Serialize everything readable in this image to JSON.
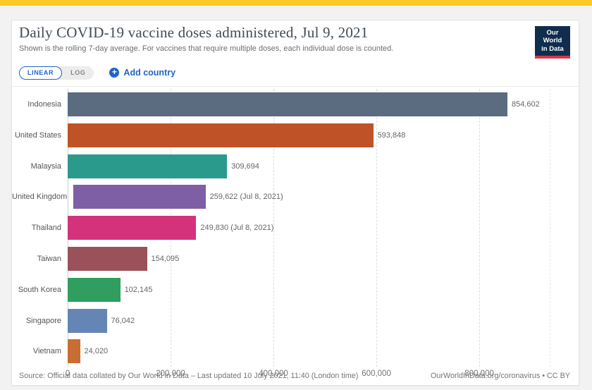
{
  "colors": {
    "accent": "#2265c7",
    "topbar": "#fdca26",
    "logo_bg": "#102d4e",
    "logo_red": "#dc3545"
  },
  "header": {
    "title": "Daily COVID-19 vaccine doses administered, Jul 9, 2021",
    "subtitle": "Shown is the rolling 7-day average. For vaccines that require multiple doses, each individual dose is counted.",
    "logo": {
      "line1": "Our World",
      "line2": "in Data"
    }
  },
  "controls": {
    "linear_label": "LINEAR",
    "log_label": "LOG",
    "active_scale": "LINEAR",
    "add_country_label": "Add country"
  },
  "chart_data": {
    "type": "bar",
    "orientation": "horizontal",
    "title": "Daily COVID-19 vaccine doses administered, Jul 9, 2021",
    "categories": [
      "Indonesia",
      "United States",
      "Malaysia",
      "United Kingdom",
      "Thailand",
      "Taiwan",
      "South Korea",
      "Singapore",
      "Vietnam"
    ],
    "values": [
      854602,
      593848,
      309694,
      259622,
      249830,
      154095,
      102145,
      76042,
      24020
    ],
    "value_labels": [
      "854,602",
      "593,848",
      "309,694",
      "259,622 (Jul 8, 2021)",
      "249,830 (Jul 8, 2021)",
      "154,095",
      "102,145",
      "76,042",
      "24,020"
    ],
    "bar_colors": [
      "#5b6b80",
      "#bf5327",
      "#2a9a8d",
      "#7e5fa5",
      "#d4337c",
      "#9b5159",
      "#2f9e5e",
      "#6585b5",
      "#c96e32"
    ],
    "x_ticks": [
      {
        "label": "0",
        "value": 0
      },
      {
        "label": "200,000",
        "value": 200000
      },
      {
        "label": "400,000",
        "value": 400000
      },
      {
        "label": "600,000",
        "value": 600000
      },
      {
        "label": "800,000",
        "value": 800000
      }
    ],
    "xlim": [
      0,
      800000
    ],
    "grid": "vertical-dashed",
    "legend": "none"
  },
  "footer": {
    "source": "Source: Official data collated by Our World in Data – Last updated 10 July 2021, 11:40 (London time)",
    "credit": "OurWorldInData.org/coronavirus • CC BY"
  }
}
